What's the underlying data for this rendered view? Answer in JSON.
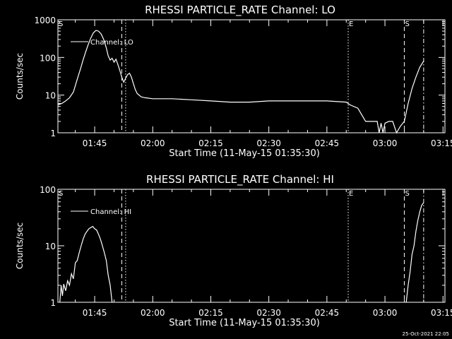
{
  "colors": {
    "background": "#000000",
    "foreground": "#ffffff"
  },
  "footer": {
    "timestamp": "25-Oct-2021 22:05"
  },
  "chart_data": [
    {
      "type": "line",
      "title": "RHESSI PARTICLE_RATE Channel: LO",
      "xlabel": "Start Time (11-May-15 01:35:30)",
      "ylabel": "Counts/sec",
      "ylog": true,
      "xlim": [
        "01:35:30",
        "03:15:30"
      ],
      "ylim": [
        1,
        1000
      ],
      "x_ticks": [
        "01:45",
        "02:00",
        "02:15",
        "02:30",
        "02:45",
        "03:00",
        "03:15"
      ],
      "y_ticks": [
        "1",
        "10",
        "100",
        "1000"
      ],
      "legend": {
        "label": "Channel: LO",
        "placement": "top-left"
      },
      "markers": [
        {
          "label": "S",
          "time": "01:35:30",
          "style": "label"
        },
        {
          "label": "",
          "time": "01:52:00",
          "style": "dashed"
        },
        {
          "label": "",
          "time": "01:53:00",
          "style": "dotted"
        },
        {
          "label": "E",
          "time": "02:50:30",
          "style": "dotted"
        },
        {
          "label": "S",
          "time": "03:05:00",
          "style": "dashed"
        },
        {
          "label": "",
          "time": "03:10:00",
          "style": "dashdot"
        }
      ],
      "series": [
        {
          "points": [
            [
              "01:35:30",
              5.5
            ],
            [
              "01:36:30",
              6
            ],
            [
              "01:37:30",
              7
            ],
            [
              "01:38:30",
              8.5
            ],
            [
              "01:39:30",
              12
            ],
            [
              "01:40:00",
              18
            ],
            [
              "01:40:40",
              30
            ],
            [
              "01:41:20",
              50
            ],
            [
              "01:42:00",
              85
            ],
            [
              "01:42:40",
              140
            ],
            [
              "01:43:20",
              220
            ],
            [
              "01:44:00",
              330
            ],
            [
              "01:44:40",
              450
            ],
            [
              "01:45:20",
              520
            ],
            [
              "01:46:00",
              500
            ],
            [
              "01:46:40",
              420
            ],
            [
              "01:47:20",
              300
            ],
            [
              "01:48:00",
              180
            ],
            [
              "01:48:30",
              110
            ],
            [
              "01:49:00",
              85
            ],
            [
              "01:49:30",
              95
            ],
            [
              "01:50:00",
              75
            ],
            [
              "01:50:30",
              90
            ],
            [
              "01:51:00",
              65
            ],
            [
              "01:51:30",
              45
            ],
            [
              "01:52:00",
              30
            ],
            [
              "01:52:30",
              22
            ],
            [
              "01:53:00",
              28
            ],
            [
              "01:53:30",
              35
            ],
            [
              "01:54:00",
              38
            ],
            [
              "01:54:30",
              30
            ],
            [
              "01:55:00",
              20
            ],
            [
              "01:55:30",
              14
            ],
            [
              "01:56:00",
              11
            ],
            [
              "01:57:00",
              9
            ],
            [
              "01:58:00",
              8.5
            ],
            [
              "02:00:00",
              8
            ],
            [
              "02:05:00",
              8
            ],
            [
              "02:10:00",
              7.5
            ],
            [
              "02:15:00",
              7
            ],
            [
              "02:20:00",
              6.5
            ],
            [
              "02:25:00",
              6.5
            ],
            [
              "02:30:00",
              7
            ],
            [
              "02:35:00",
              7
            ],
            [
              "02:40:00",
              7
            ],
            [
              "02:45:00",
              7
            ],
            [
              "02:50:00",
              6.5
            ],
            [
              "02:51:00",
              5.5
            ],
            [
              "02:53:00",
              4.5
            ],
            [
              "02:54:00",
              3
            ],
            [
              "02:55:00",
              2
            ],
            [
              "02:58:00",
              2
            ],
            [
              "02:58:30",
              1
            ],
            [
              "02:59:00",
              1.8
            ],
            [
              "02:59:30",
              1
            ],
            [
              "03:00:00",
              1.8
            ],
            [
              "03:01:00",
              2
            ],
            [
              "03:02:00",
              2
            ],
            [
              "03:03:00",
              1
            ],
            [
              "03:04:00",
              1.5
            ],
            [
              "03:05:00",
              2
            ],
            [
              "03:06:00",
              6
            ],
            [
              "03:07:00",
              15
            ],
            [
              "03:08:00",
              30
            ],
            [
              "03:09:00",
              55
            ],
            [
              "03:10:00",
              80
            ]
          ]
        }
      ]
    },
    {
      "type": "line",
      "title": "RHESSI PARTICLE_RATE Channel: HI",
      "xlabel": "Start Time (11-May-15 01:35:30)",
      "ylabel": "Counts/sec",
      "ylog": true,
      "xlim": [
        "01:35:30",
        "03:15:30"
      ],
      "ylim": [
        1,
        100
      ],
      "x_ticks": [
        "01:45",
        "02:00",
        "02:15",
        "02:30",
        "02:45",
        "03:00",
        "03:15"
      ],
      "y_ticks": [
        "1",
        "10",
        "100"
      ],
      "legend": {
        "label": "Channel: HI",
        "placement": "top-left"
      },
      "markers": [
        {
          "label": "S",
          "time": "01:35:30",
          "style": "label"
        },
        {
          "label": "",
          "time": "01:52:00",
          "style": "dashed"
        },
        {
          "label": "",
          "time": "01:53:00",
          "style": "dotted"
        },
        {
          "label": "E",
          "time": "02:50:30",
          "style": "dotted"
        },
        {
          "label": "S",
          "time": "03:05:00",
          "style": "dashed"
        },
        {
          "label": "",
          "time": "03:10:00",
          "style": "dashdot"
        }
      ],
      "series": [
        {
          "points": [
            [
              "01:36:00",
              1
            ],
            [
              "01:36:20",
              2
            ],
            [
              "01:36:40",
              1.3
            ],
            [
              "01:37:00",
              2.1
            ],
            [
              "01:37:30",
              1.6
            ],
            [
              "01:38:00",
              2.4
            ],
            [
              "01:38:30",
              2
            ],
            [
              "01:39:00",
              3.2
            ],
            [
              "01:39:30",
              2.6
            ],
            [
              "01:40:00",
              5
            ],
            [
              "01:40:30",
              5.5
            ],
            [
              "01:41:00",
              7.5
            ],
            [
              "01:41:30",
              10
            ],
            [
              "01:42:00",
              13
            ],
            [
              "01:42:30",
              16
            ],
            [
              "01:43:00",
              18
            ],
            [
              "01:43:30",
              20
            ],
            [
              "01:44:00",
              21
            ],
            [
              "01:44:30",
              22
            ],
            [
              "01:45:00",
              20
            ],
            [
              "01:45:30",
              19
            ],
            [
              "01:46:00",
              16
            ],
            [
              "01:46:30",
              13
            ],
            [
              "01:47:00",
              10
            ],
            [
              "01:47:30",
              7.5
            ],
            [
              "01:48:00",
              5.5
            ],
            [
              "01:48:30",
              3
            ],
            [
              "01:49:00",
              2
            ],
            [
              "01:49:30",
              1
            ]
          ]
        },
        {
          "points": [
            [
              "03:05:30",
              1
            ],
            [
              "03:06:00",
              2
            ],
            [
              "03:06:30",
              3.5
            ],
            [
              "03:07:00",
              7
            ],
            [
              "03:07:30",
              10
            ],
            [
              "03:08:00",
              18
            ],
            [
              "03:08:30",
              28
            ],
            [
              "03:09:00",
              40
            ],
            [
              "03:09:30",
              52
            ],
            [
              "03:10:00",
              58
            ]
          ]
        }
      ]
    }
  ]
}
